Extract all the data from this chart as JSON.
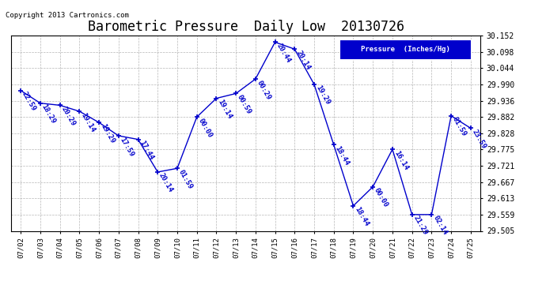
{
  "title": "Barometric Pressure  Daily Low  20130726",
  "copyright": "Copyright 2013 Cartronics.com",
  "legend_label": "Pressure  (Inches/Hg)",
  "dates": [
    "07/02",
    "07/03",
    "07/04",
    "07/05",
    "07/06",
    "07/07",
    "07/08",
    "07/09",
    "07/10",
    "07/11",
    "07/12",
    "07/13",
    "07/14",
    "07/15",
    "07/16",
    "07/17",
    "07/18",
    "07/19",
    "07/20",
    "07/21",
    "07/22",
    "07/23",
    "07/24",
    "07/25"
  ],
  "values": [
    29.97,
    29.928,
    29.921,
    29.901,
    29.864,
    29.82,
    29.808,
    29.7,
    29.712,
    29.882,
    29.944,
    29.96,
    30.008,
    30.13,
    30.107,
    29.99,
    29.79,
    29.588,
    29.651,
    29.775,
    29.559,
    29.559,
    29.886,
    29.845
  ],
  "times": [
    "22:59",
    "18:29",
    "20:29",
    "19:14",
    "19:29",
    "17:59",
    "17:44",
    "20:14",
    "01:59",
    "00:00",
    "19:14",
    "00:59",
    "00:29",
    "20:44",
    "20:14",
    "19:29",
    "18:44",
    "18:44",
    "00:00",
    "16:14",
    "21:29",
    "02:14",
    "01:59",
    "23:59"
  ],
  "ylim_min": 29.505,
  "ylim_max": 30.152,
  "yticks": [
    29.505,
    29.559,
    29.613,
    29.667,
    29.721,
    29.775,
    29.828,
    29.882,
    29.936,
    29.99,
    30.044,
    30.098,
    30.152
  ],
  "line_color": "#0000cc",
  "bg_color": "#ffffff",
  "grid_color": "#aaaaaa",
  "title_fontsize": 12,
  "annotation_fontsize": 6.5,
  "legend_bg": "#0000cc",
  "legend_fg": "#ffffff"
}
